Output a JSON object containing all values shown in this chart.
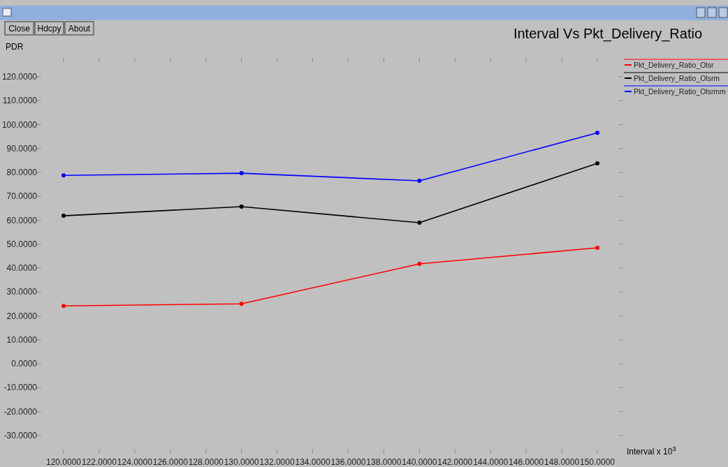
{
  "chart_data": {
    "type": "line",
    "title": "Interval Vs Pkt_Delivery_Ratio",
    "xlabel": "Interval x 10$^{3}$",
    "ylabel": "PDR",
    "annotations": [
      "Close",
      "Hdcpy",
      "About"
    ],
    "x": [
      120,
      130,
      140,
      150
    ],
    "series": [
      {
        "name": "Pkt_Delivery_Ratio_Olsr",
        "color": "#ff0000",
        "values": [
          24.2,
          25.1,
          41.8,
          48.5
        ]
      },
      {
        "name": "Pkt_Delivery_Ratio_Olsrm",
        "color": "#000000",
        "values": [
          61.9,
          65.7,
          59.0,
          83.8
        ]
      },
      {
        "name": "Pkt_Delivery_Ratio_Olsrmm",
        "color": "#0000ff",
        "values": [
          78.8,
          79.7,
          76.5,
          96.6
        ]
      }
    ],
    "xlim": [
      120,
      150
    ],
    "ylim": [
      -30,
      120
    ],
    "xticks": [
      {
        "value": 120,
        "label": "120.0000"
      },
      {
        "value": 122,
        "label": "122.0000"
      },
      {
        "value": 124,
        "label": "124.0000"
      },
      {
        "value": 126,
        "label": "126.0000"
      },
      {
        "value": 128,
        "label": "128.0000"
      },
      {
        "value": 130,
        "label": "130.0000"
      },
      {
        "value": 132,
        "label": "132.0000"
      },
      {
        "value": 134,
        "label": "134.0000"
      },
      {
        "value": 136,
        "label": "136.0000"
      },
      {
        "value": 138,
        "label": "138.0000"
      },
      {
        "value": 140,
        "label": "140.0000"
      },
      {
        "value": 142,
        "label": "142.0000"
      },
      {
        "value": 144,
        "label": "144.0000"
      },
      {
        "value": 146,
        "label": "146.0000"
      },
      {
        "value": 148,
        "label": "148.0000"
      },
      {
        "value": 150,
        "label": "150.0000"
      }
    ],
    "yticks": [
      {
        "value": -30,
        "label": "-30.0000"
      },
      {
        "value": -20,
        "label": "-20.0000"
      },
      {
        "value": -10,
        "label": "-10.0000"
      },
      {
        "value": 0,
        "label": "0.0000"
      },
      {
        "value": 10,
        "label": "10.0000"
      },
      {
        "value": 20,
        "label": "20.0000"
      },
      {
        "value": 30,
        "label": "30.0000"
      },
      {
        "value": 40,
        "label": "40.0000"
      },
      {
        "value": 50,
        "label": "50.0000"
      },
      {
        "value": 60,
        "label": "60.0000"
      },
      {
        "value": 70,
        "label": "70.0000"
      },
      {
        "value": 80,
        "label": "80.0000"
      },
      {
        "value": 90,
        "label": "90.0000"
      },
      {
        "value": 100,
        "label": "100.0000"
      },
      {
        "value": 110,
        "label": "110.0000"
      },
      {
        "value": 120,
        "label": "120.0000"
      }
    ],
    "grid": false,
    "legend": "top right",
    "marker": "circle",
    "line_style": "solid"
  }
}
